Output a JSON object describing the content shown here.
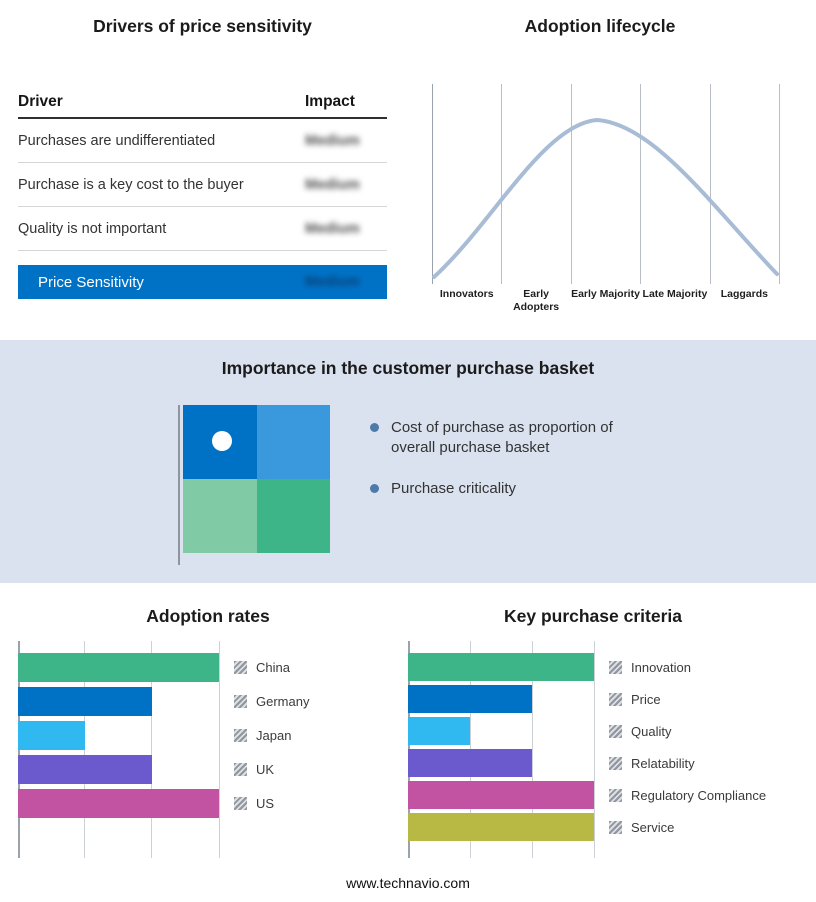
{
  "drivers_panel": {
    "title": "Drivers of price sensitivity",
    "header": {
      "driver": "Driver",
      "impact": "Impact"
    },
    "rows": [
      {
        "driver": "Purchases are undifferentiated",
        "impact": "Medium"
      },
      {
        "driver": "Purchase is a key cost to the buyer",
        "impact": "Medium"
      },
      {
        "driver": "Quality is not important",
        "impact": "Medium"
      }
    ],
    "highlight_row": {
      "driver": "Price Sensitivity",
      "impact": "Medium"
    },
    "highlight_color": "#0072c6"
  },
  "lifecycle_panel": {
    "title": "Adoption lifecycle",
    "stages": [
      "Innovators",
      "Early Adopters",
      "Early Majority",
      "Late Majority",
      "Laggards"
    ],
    "curve_color": "#a9bcd6"
  },
  "basket_panel": {
    "title": "Importance in the customer purchase basket",
    "bullets": [
      "Cost of purchase as proportion of overall purchase basket",
      "Purchase criticality"
    ],
    "quadrant_colors": {
      "top_left": "#0072c6",
      "top_right": "#3a99dc",
      "bottom_left": "#80cba6",
      "bottom_right": "#3eb489"
    }
  },
  "footer": {
    "url_text": "www.technavio.com"
  },
  "chart_data": [
    {
      "type": "line",
      "title": "Adoption lifecycle",
      "x": [
        "Innovators",
        "Early Adopters",
        "Early Majority",
        "Late Majority",
        "Laggards"
      ],
      "values": [
        0.05,
        0.55,
        1.0,
        0.55,
        0.05
      ],
      "note": "Bell-shaped adoption curve peaking at Early Majority",
      "grid": true,
      "legend_position": "none"
    },
    {
      "type": "bar",
      "orientation": "horizontal",
      "title": "Adoption rates",
      "categories": [
        "China",
        "Germany",
        "Japan",
        "UK",
        "US"
      ],
      "values": [
        3,
        2,
        1,
        2,
        3
      ],
      "colors": [
        "#3eb489",
        "#0072c6",
        "#30b8f0",
        "#6a5acd",
        "#c153a2"
      ],
      "xlim": [
        0,
        3
      ],
      "x_ticks": [
        0,
        1,
        2,
        3
      ],
      "grid": true,
      "legend_position": "right"
    },
    {
      "type": "bar",
      "orientation": "horizontal",
      "title": "Key purchase criteria",
      "categories": [
        "Innovation",
        "Price",
        "Quality",
        "Relatability",
        "Regulatory Compliance",
        "Service"
      ],
      "values": [
        3,
        2,
        1,
        2,
        3,
        3
      ],
      "colors": [
        "#3eb489",
        "#0072c6",
        "#30b8f0",
        "#6a5acd",
        "#c153a2",
        "#b8b944"
      ],
      "xlim": [
        0,
        3
      ],
      "x_ticks": [
        0,
        1,
        2,
        3
      ],
      "grid": true,
      "legend_position": "right"
    }
  ]
}
